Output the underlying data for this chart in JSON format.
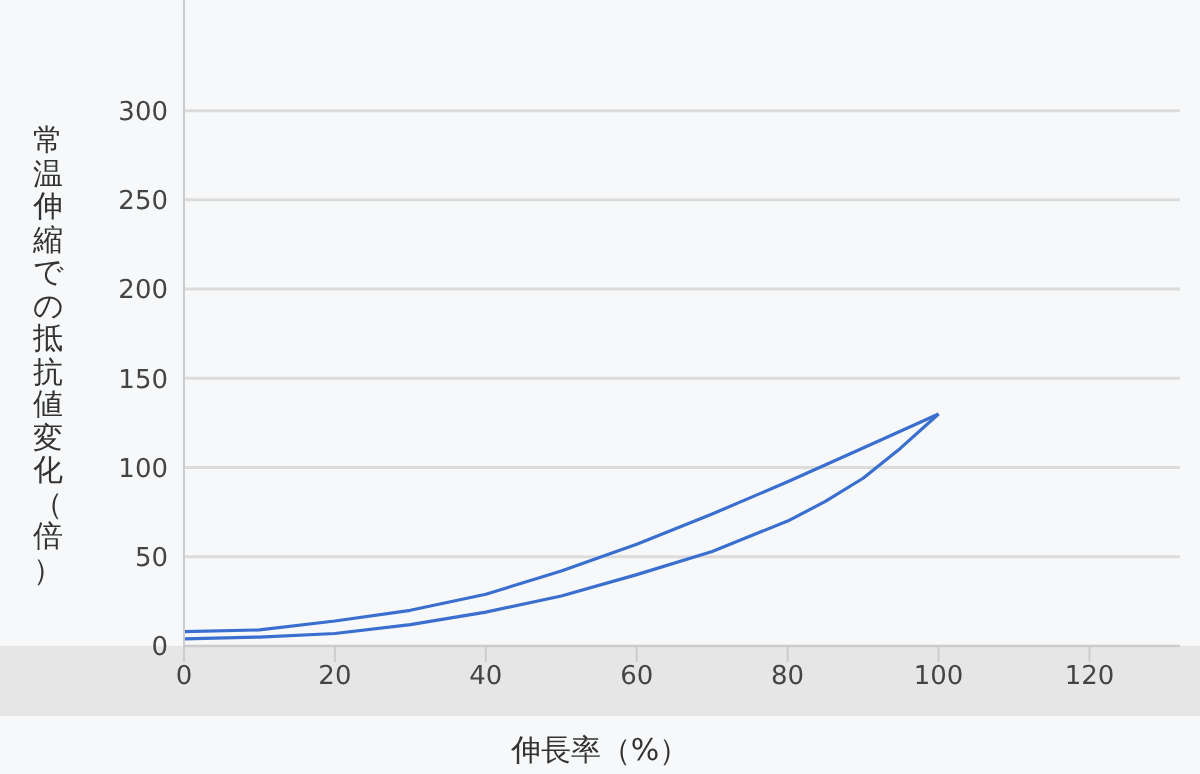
{
  "chart_data": {
    "type": "line",
    "xlabel": "伸長率（%）",
    "ylabel": "常温伸縮での抵抗値変化（倍）",
    "xlim": [
      0,
      132
    ],
    "xticks": [
      0,
      20,
      40,
      60,
      80,
      100,
      120
    ],
    "ylim": [
      0,
      362
    ],
    "yticks": [
      0,
      50,
      100,
      150,
      200,
      250,
      300
    ],
    "grid": "y",
    "marker": "none",
    "line_style": "solid",
    "series": [
      {
        "color": "#3a6fd0",
        "x": [
          0,
          10,
          20,
          30,
          40,
          50,
          60,
          70,
          80,
          90,
          100
        ],
        "values": [
          8,
          9,
          14,
          20,
          29,
          42,
          57,
          74,
          92,
          111,
          130
        ]
      },
      {
        "color": "#3a6fd0",
        "x": [
          100,
          95,
          90,
          85,
          80,
          70,
          60,
          50,
          40,
          30,
          20,
          10,
          0
        ],
        "values": [
          130,
          111,
          94,
          81,
          70,
          53,
          40,
          28,
          19,
          12,
          7,
          5,
          4
        ]
      }
    ]
  }
}
